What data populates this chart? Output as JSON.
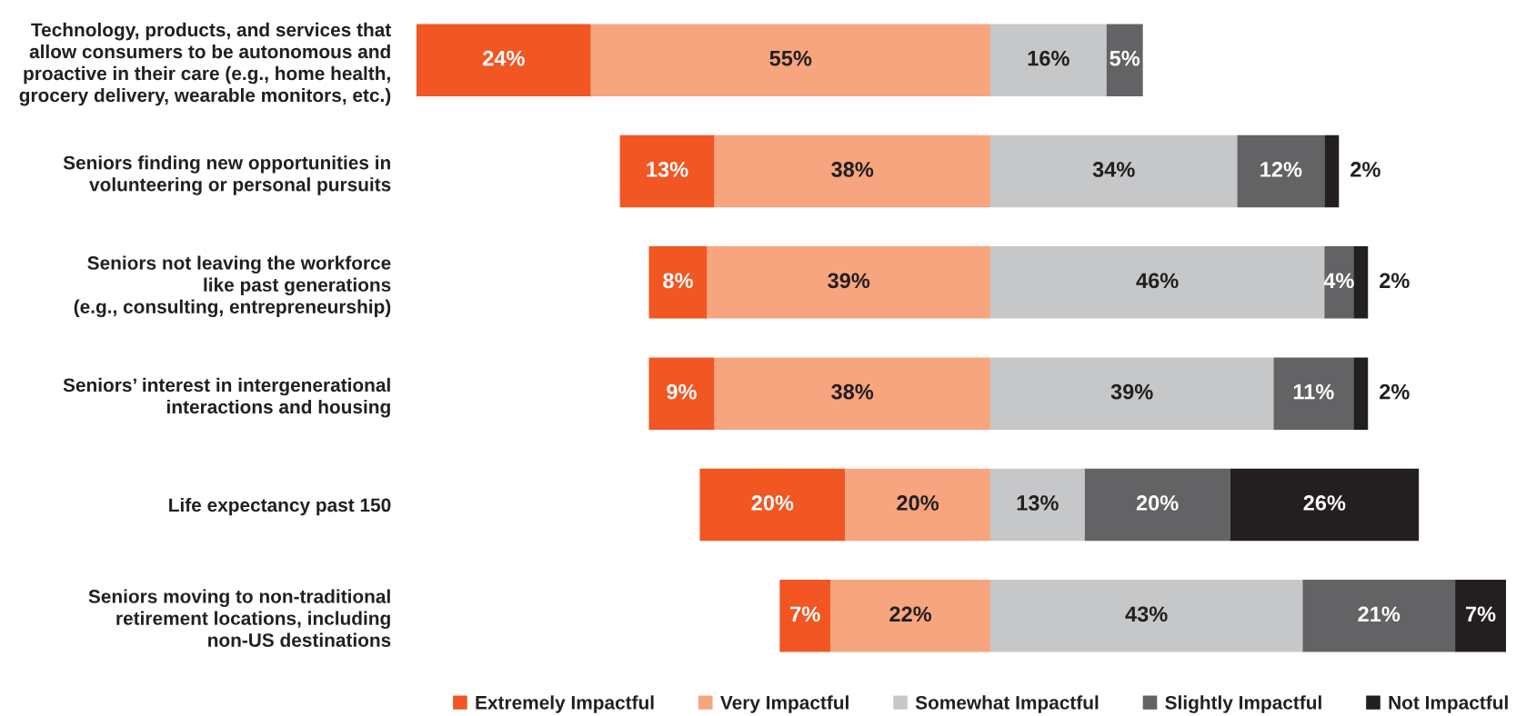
{
  "chart_data": [
    {
      "type": "bar",
      "orientation": "horizontal",
      "stacked": true,
      "categories": [
        "Technology, products, and services that\nallow consumers to be autonomous and\nproactive in their care (e.g., home health,\ngrocery delivery, wearable monitors, etc.)",
        "Seniors finding new opportunities in\nvolunteering or personal pursuits",
        "Seniors not leaving the workforce\nlike past generations\n(e.g., consulting, entrepreneurship)",
        "Seniors’ interest in intergenerational\ninteractions and housing",
        "Life expectancy past 150",
        "Seniors moving to non-traditional\nretirement locations, including\nnon-US destinations"
      ],
      "series": [
        {
          "name": "Very Impactful",
          "color": "#f7a57e",
          "values": [
            55,
            38,
            39,
            38,
            20,
            22
          ],
          "value_labels": [
            "55%",
            "38%",
            "39%",
            "38%",
            "20%",
            "22%"
          ]
        },
        {
          "name": "Extremely Impactful",
          "color": "#f15623",
          "values": [
            24,
            13,
            8,
            9,
            20,
            7
          ],
          "value_labels": [
            "24%",
            "13%",
            "8%",
            "9%",
            "20%",
            "7%"
          ]
        }
      ],
      "xlim": [
        79,
        0
      ],
      "tick_labels": "y",
      "legend": "bottom"
    },
    {
      "type": "bar",
      "orientation": "horizontal",
      "stacked": true,
      "categories": [
        null,
        null,
        null,
        null,
        null,
        null
      ],
      "series": [
        {
          "name": "Somewhat Impactful",
          "color": "#c6c7c9",
          "values": [
            16,
            34,
            46,
            39,
            13,
            43
          ],
          "value_labels": [
            "16%",
            "34%",
            "46%",
            "39%",
            "13%",
            "43%"
          ]
        },
        {
          "name": "Slightly Impactful",
          "color": "#636365",
          "values": [
            5,
            12,
            4,
            11,
            20,
            21
          ],
          "value_labels": [
            "5%",
            "12%",
            "4%",
            "11%",
            "20%",
            "21%"
          ]
        },
        {
          "name": "Not Impactful",
          "color": "#231f20",
          "values": [
            null,
            2,
            2,
            2,
            26,
            7
          ],
          "value_labels": [
            null,
            "2%",
            "2%",
            "2%",
            "26%",
            "7%"
          ]
        }
      ],
      "xlim": [
        0,
        71
      ],
      "legend": "bottom"
    }
  ]
}
